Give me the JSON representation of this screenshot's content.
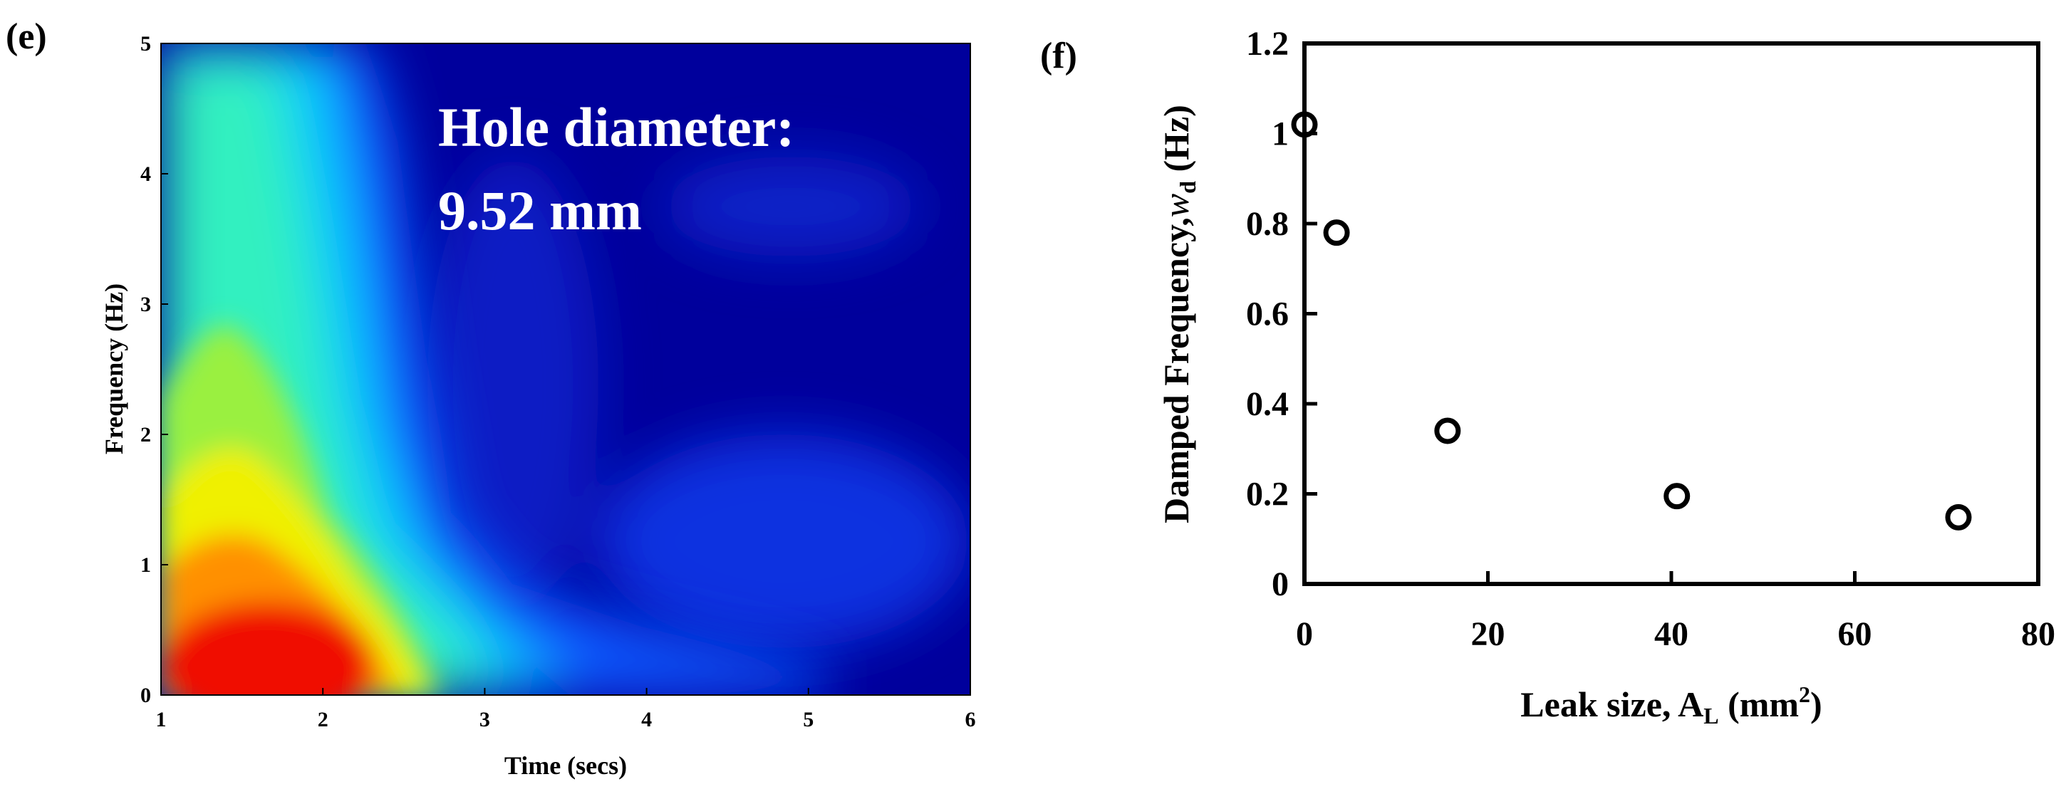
{
  "chart_data": [
    {
      "type": "heatmap",
      "panel_label": "(e)",
      "title": "",
      "xlabel": "Time (secs)",
      "ylabel": "Frequency (Hz)",
      "xlim": [
        1,
        6
      ],
      "ylim": [
        0,
        5
      ],
      "xticks": [
        "1",
        "2",
        "3",
        "4",
        "5",
        "6"
      ],
      "yticks": [
        "0",
        "1",
        "2",
        "3",
        "4",
        "5"
      ],
      "colormap": "jet",
      "annotation": {
        "line1": "Hole diameter:",
        "line2": "9.52 mm"
      },
      "features": [
        {
          "t": 1.8,
          "f": 0.25,
          "intensity": 1.0
        },
        {
          "t": 1.5,
          "f": 1.2,
          "intensity": 0.62
        },
        {
          "t": 1.3,
          "f": 3.5,
          "intensity": 0.42
        },
        {
          "t": 2.4,
          "f": 0.3,
          "intensity": 0.6
        },
        {
          "t": 3.0,
          "f": 0.2,
          "intensity": 0.3
        },
        {
          "t": 4.5,
          "f": 0.3,
          "intensity": 0.2
        }
      ]
    },
    {
      "type": "scatter",
      "panel_label": "(f)",
      "title": "",
      "xlabel": "Leak size, A",
      "xlabel_sub": "L",
      "xlabel_unit": " (mm",
      "xlabel_sup": "2",
      "xlabel_end": ")",
      "ylabel": "Damped Frequency,",
      "ylabel_var": "w",
      "ylabel_sub": "d",
      "ylabel_unit": " (Hz)",
      "xlim": [
        0,
        80
      ],
      "ylim": [
        0,
        1.2
      ],
      "xticks": [
        "0",
        "20",
        "40",
        "60",
        "80"
      ],
      "yticks": [
        "0",
        "0.2",
        "0.4",
        "0.6",
        "0.8",
        "1",
        "1.2"
      ],
      "x": [
        0,
        3.5,
        15.6,
        40.6,
        71.3
      ],
      "y": [
        1.02,
        0.78,
        0.34,
        0.195,
        0.148
      ]
    }
  ]
}
